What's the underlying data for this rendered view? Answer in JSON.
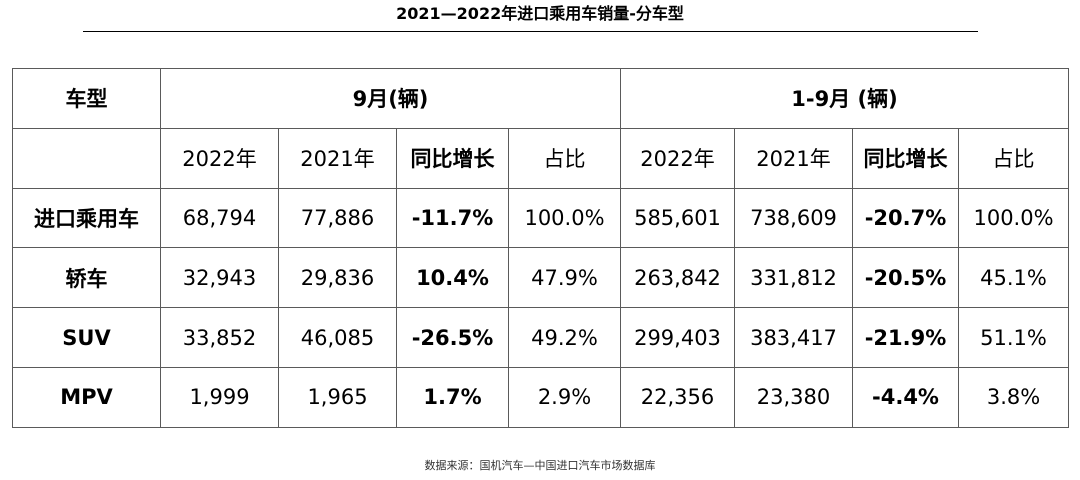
{
  "title": "2021—2022年进口乘用车销量-分车型",
  "source": "数据来源：国机汽车—中国进口汽车市场数据库",
  "chart_data": {
    "type": "table",
    "header": {
      "model_col": "车型",
      "group_sep": "9月(辆)",
      "group_ytd": "1-9月 (辆)"
    },
    "columns": [
      "2022年",
      "2021年",
      "同比增长",
      "占比",
      "2022年",
      "2021年",
      "同比增长",
      "占比"
    ],
    "rows": [
      {
        "model": "进口乘用车",
        "cells": [
          "68,794",
          "77,886",
          "-11.7%",
          "100.0%",
          "585,601",
          "738,609",
          "-20.7%",
          "100.0%"
        ]
      },
      {
        "model": "轿车",
        "cells": [
          "32,943",
          "29,836",
          "10.4%",
          "47.9%",
          "263,842",
          "331,812",
          "-20.5%",
          "45.1%"
        ]
      },
      {
        "model": "SUV",
        "cells": [
          "33,852",
          "46,085",
          "-26.5%",
          "49.2%",
          "299,403",
          "383,417",
          "-21.9%",
          "51.1%"
        ]
      },
      {
        "model": "MPV",
        "cells": [
          "1,999",
          "1,965",
          "1.7%",
          "2.9%",
          "22,356",
          "23,380",
          "-4.4%",
          "3.8%"
        ]
      }
    ]
  }
}
